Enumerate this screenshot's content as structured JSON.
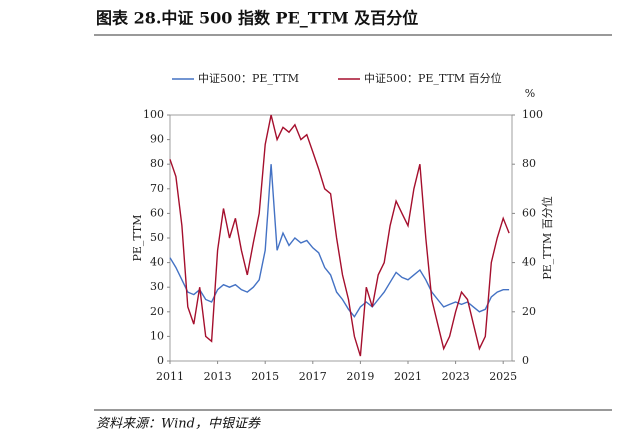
{
  "chart_data": {
    "type": "line",
    "title": "图表 28.中证 500 指数 PE_TTM 及百分位",
    "source": "资料来源：Wind，中银证券",
    "y_label": "PE_TTM",
    "y2_label": "PE_TTM 百分位",
    "y2_unit": "%",
    "x": [
      2011,
      2011.25,
      2011.5,
      2011.75,
      2012,
      2012.25,
      2012.5,
      2012.75,
      2013,
      2013.25,
      2013.5,
      2013.75,
      2014,
      2014.25,
      2014.5,
      2014.75,
      2015,
      2015.25,
      2015.5,
      2015.75,
      2016,
      2016.25,
      2016.5,
      2016.75,
      2017,
      2017.25,
      2017.5,
      2017.75,
      2018,
      2018.25,
      2018.5,
      2018.75,
      2019,
      2019.25,
      2019.5,
      2019.75,
      2020,
      2020.25,
      2020.5,
      2020.75,
      2021,
      2021.25,
      2021.5,
      2021.75,
      2022,
      2022.25,
      2022.5,
      2022.75,
      2023,
      2023.25,
      2023.5,
      2023.75,
      2024,
      2024.25,
      2024.5,
      2024.75,
      2025,
      2025.25
    ],
    "series": [
      {
        "name": "中证500：PE_TTM",
        "color": "#4472c4",
        "values": [
          42,
          38,
          33,
          28,
          27,
          29,
          25,
          24,
          29,
          31,
          30,
          31,
          29,
          28,
          30,
          33,
          45,
          80,
          45,
          52,
          47,
          50,
          48,
          49,
          46,
          44,
          38,
          35,
          28,
          25,
          21,
          18,
          22,
          24,
          22,
          25,
          28,
          32,
          36,
          34,
          33,
          35,
          37,
          33,
          28,
          25,
          22,
          23,
          24,
          23,
          24,
          22,
          20,
          21,
          26,
          28,
          29,
          29
        ]
      },
      {
        "name": "中证500：PE_TTM 百分位",
        "color": "#a50f2d",
        "axis": "y2",
        "values": [
          82,
          75,
          55,
          22,
          15,
          30,
          10,
          8,
          45,
          62,
          50,
          58,
          45,
          35,
          48,
          60,
          88,
          100,
          90,
          95,
          93,
          96,
          90,
          92,
          85,
          78,
          70,
          68,
          50,
          35,
          25,
          10,
          2,
          30,
          22,
          35,
          40,
          55,
          65,
          60,
          55,
          70,
          80,
          50,
          25,
          15,
          5,
          10,
          20,
          28,
          25,
          15,
          5,
          10,
          40,
          50,
          58,
          52
        ]
      }
    ],
    "xlim": [
      2011,
      2025.37
    ],
    "xticks": [
      2011,
      2013,
      2015,
      2017,
      2019,
      2021,
      2023,
      2025
    ],
    "ylim": [
      0,
      100
    ],
    "yticks": [
      0,
      10,
      20,
      30,
      40,
      50,
      60,
      70,
      80,
      90,
      100
    ],
    "y2lim": [
      0,
      100
    ],
    "y2ticks": [
      0,
      20,
      40,
      60,
      80,
      100
    ]
  }
}
